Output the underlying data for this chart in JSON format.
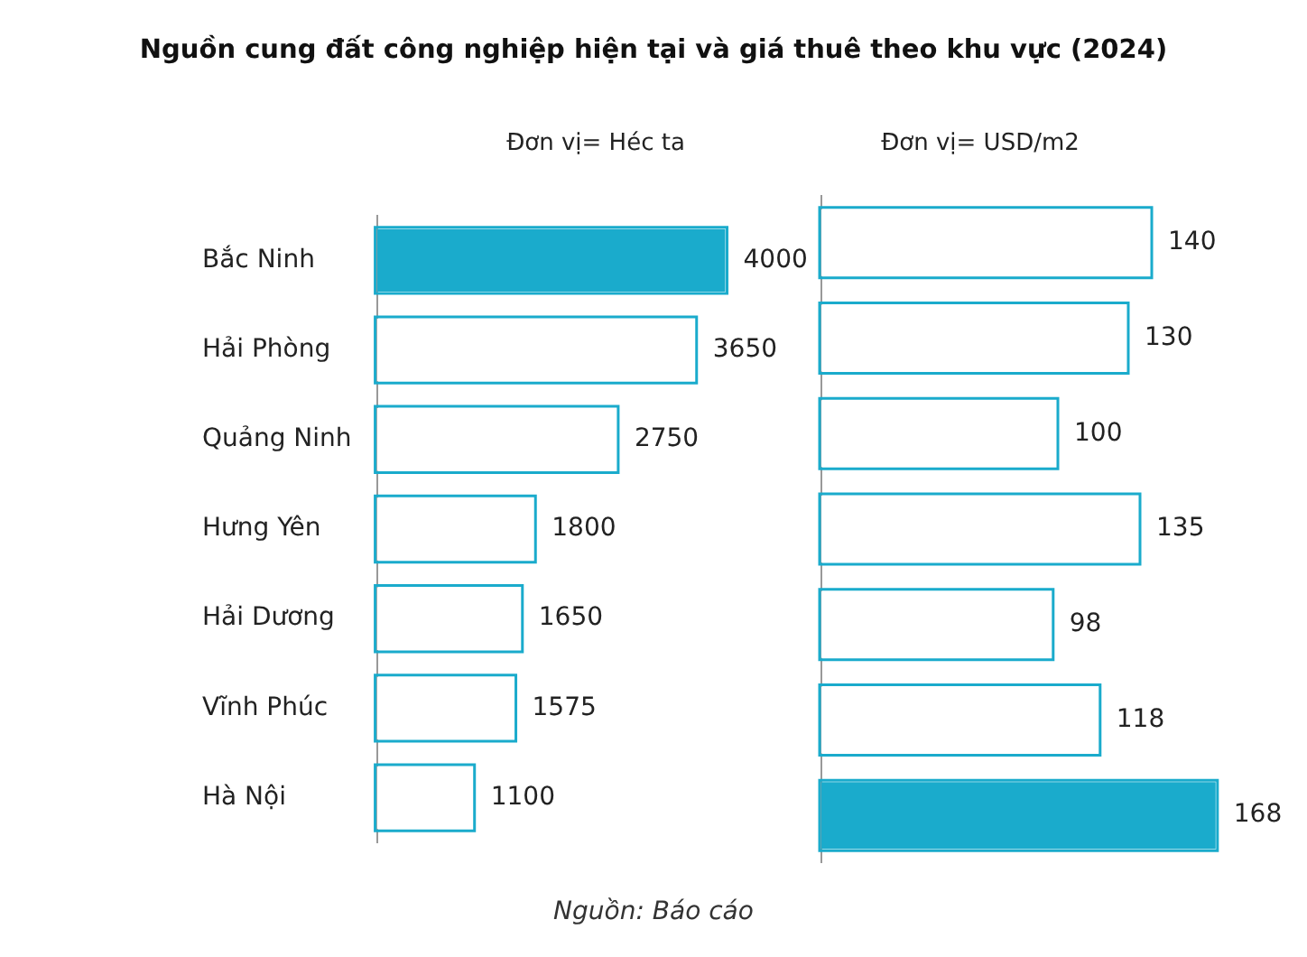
{
  "chart_data": [
    {
      "type": "bar",
      "orientation": "horizontal",
      "title": "Nguồn cung đất công nghiệp hiện tại và giá thuê theo khu vực (2024)",
      "subtitle": "Đơn vị= Héc ta",
      "categories": [
        "Bắc Ninh",
        "Hải Phòng",
        "Quảng Ninh",
        "Hưng Yên",
        "Hải Dương",
        "Vĩnh Phúc",
        "Hà Nội"
      ],
      "values": [
        4000,
        3650,
        2750,
        1800,
        1650,
        1575,
        1100
      ],
      "color": "#1aabcc",
      "colors": [
        "#1aabcc",
        "#ffffff",
        "#ffffff",
        "#ffffff",
        "#ffffff",
        "#ffffff",
        "#ffffff"
      ],
      "data_labels": true,
      "legend": false,
      "annotations": [
        "Nguồn: Báo cáo"
      ]
    },
    {
      "type": "bar",
      "orientation": "horizontal",
      "subtitle": "Đơn vị= USD/m2",
      "categories": [
        null,
        null,
        null,
        null,
        null,
        null,
        null
      ],
      "values": [
        140,
        130,
        100,
        135,
        98,
        118,
        168
      ],
      "color": "#1aabcc",
      "colors": [
        "#ffffff",
        "#ffffff",
        "#ffffff",
        "#ffffff",
        "#ffffff",
        "#ffffff",
        "#1aabcc"
      ],
      "data_labels": true,
      "legend": false,
      "tick_labels": false
    }
  ]
}
